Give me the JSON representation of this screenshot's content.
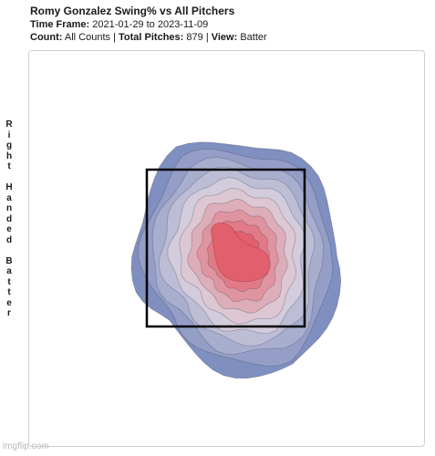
{
  "header": {
    "title": "Romy Gonzalez Swing% vs All Pitchers",
    "timeframe_label": "Time Frame:",
    "timeframe_value": "2021-01-29 to 2023-11-09",
    "count_label": "Count:",
    "count_value": "All Counts",
    "separator": "|",
    "total_label": "Total Pitches:",
    "total_value": "879",
    "view_label": "View:",
    "view_value": "Batter"
  },
  "side_label": "Right Handed Batter",
  "watermark": "imgflip.com",
  "colors": {
    "low": "#7f8fc0",
    "mid": "#dcd4e0",
    "high": "#e2606d",
    "zone_border": "#000000",
    "panel_border": "#cfcfcf"
  },
  "chart_data": {
    "type": "heatmap",
    "title": "Romy Gonzalez Swing% vs All Pitchers",
    "metric": "Swing%",
    "batter_side": "Right Handed Batter",
    "total_pitches": 879,
    "grid": false,
    "legend": "none",
    "strike_zone": true,
    "density_levels": [
      1,
      2,
      3,
      4,
      5,
      6,
      7,
      8,
      9,
      10
    ],
    "peak_region": "middle-inner of strike zone"
  }
}
